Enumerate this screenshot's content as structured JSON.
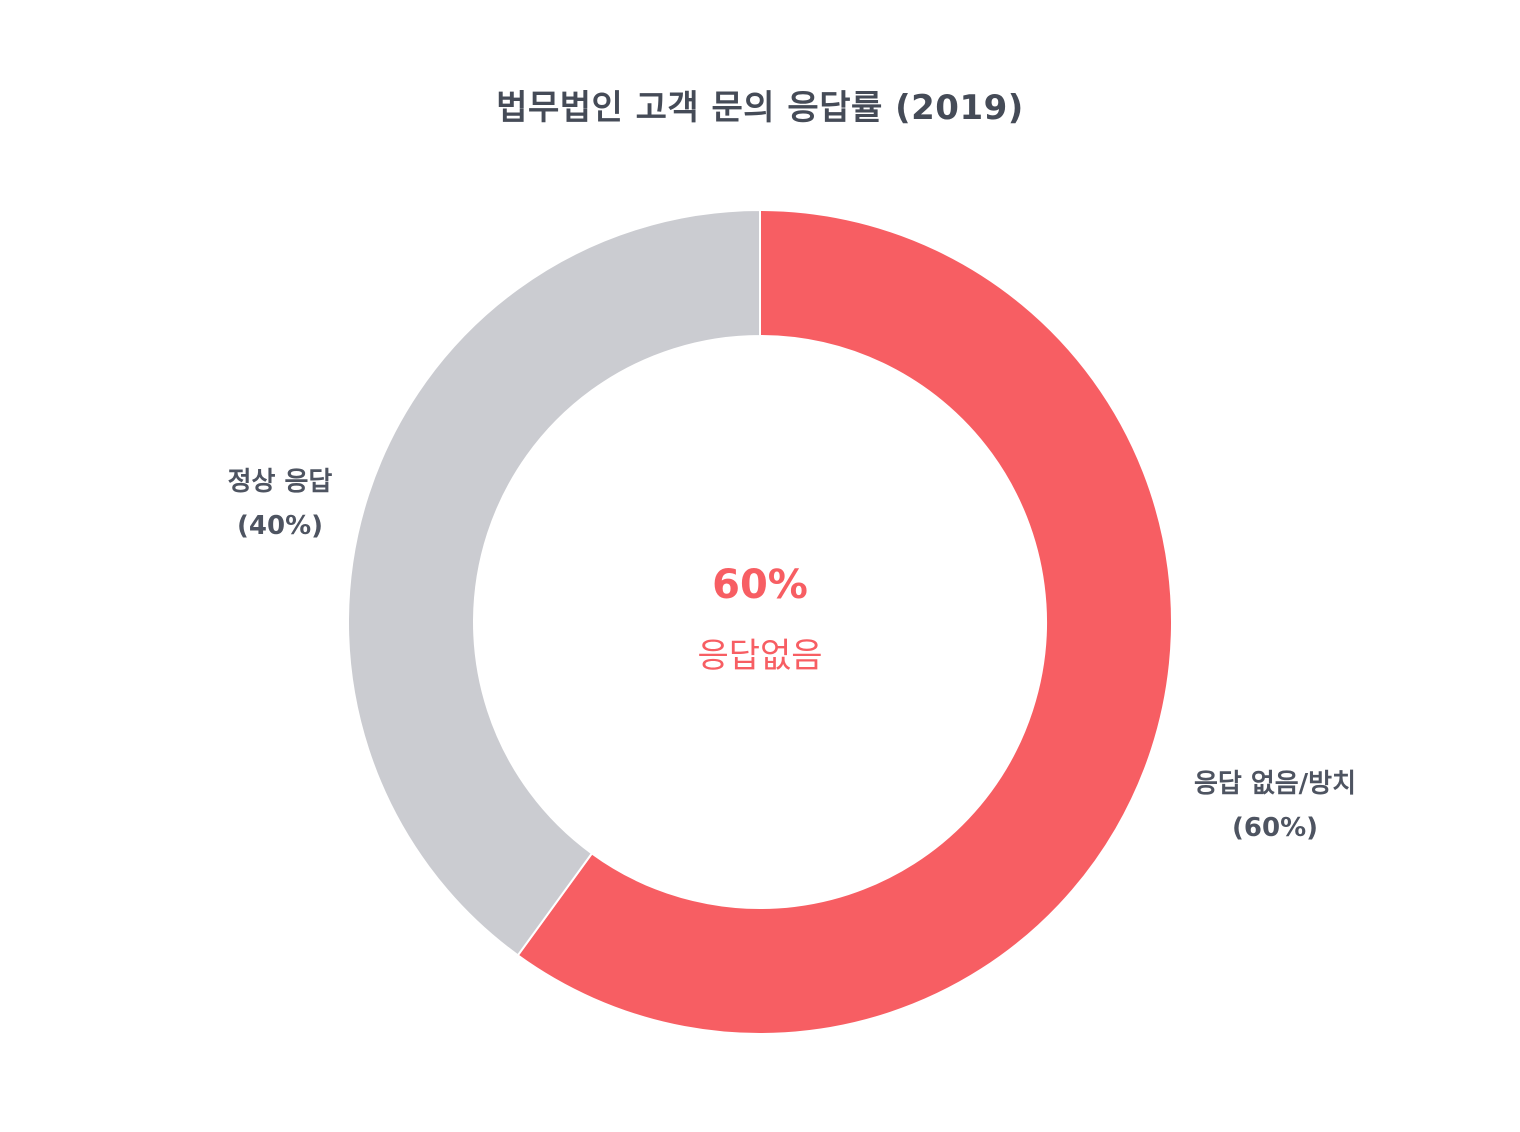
{
  "chart_data": {
    "type": "pie",
    "donut": true,
    "title": "법무법인 고객 문의 응답률 (2019)",
    "slices": [
      {
        "label": "응답 없음/방치",
        "value": 60,
        "display": "(60%)",
        "color": "#f75e63"
      },
      {
        "label": "정상 응답",
        "value": 40,
        "display": "(40%)",
        "color": "#cbccd1"
      }
    ],
    "center": {
      "value": "60%",
      "label": "응답없음",
      "color": "#f75e63"
    },
    "start": "12 o'clock",
    "direction": "clockwise"
  }
}
